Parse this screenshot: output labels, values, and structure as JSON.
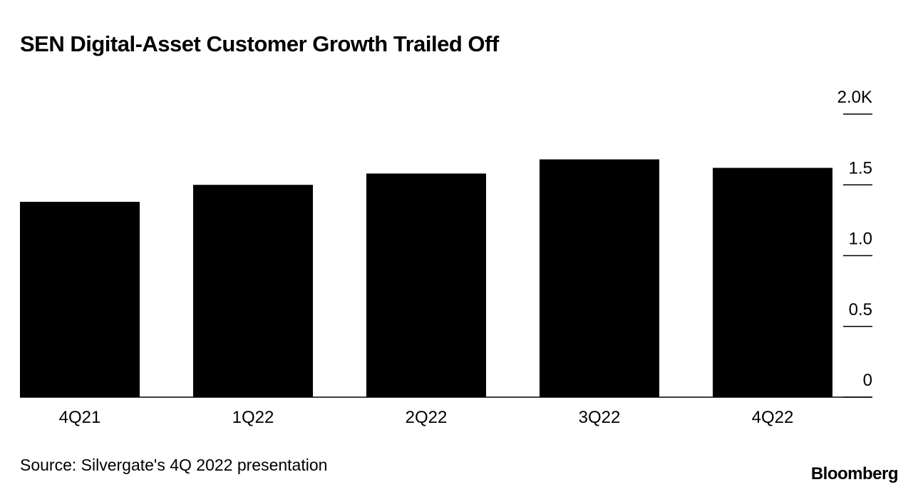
{
  "chart_data": {
    "type": "bar",
    "title": "SEN Digital-Asset Customer Growth Trailed Off",
    "categories": [
      "4Q21",
      "1Q22",
      "2Q22",
      "3Q22",
      "4Q22"
    ],
    "values": [
      1.38,
      1.5,
      1.58,
      1.68,
      1.62
    ],
    "color": "#000000",
    "ylim": [
      0,
      2
    ],
    "yticks": [
      0,
      0.5,
      {
        "value": 1,
        "label": "1.0"
      },
      1.5,
      {
        "value": 2,
        "label": "2.0K"
      }
    ],
    "source": "Source: Silvergate's 4Q 2022 presentation",
    "brand": "Bloomberg"
  }
}
